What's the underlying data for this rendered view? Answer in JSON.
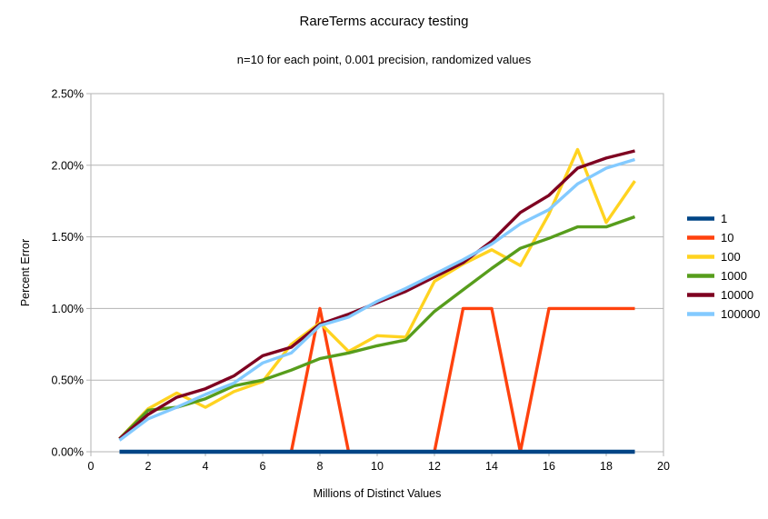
{
  "chart_data": {
    "type": "line",
    "title": "RareTerms accuracy testing",
    "subtitle": "n=10 for each point, 0.001 precision, randomized values",
    "xlabel": "Millions of Distinct Values",
    "ylabel": "Percent Error",
    "xlim": [
      0,
      20
    ],
    "ylim_percent": [
      0.0,
      2.5
    ],
    "grid": "horizontal",
    "legend_position": "right",
    "x_ticks": {
      "values": [
        0,
        2,
        4,
        6,
        8,
        10,
        12,
        14,
        16,
        18,
        20
      ],
      "labels": [
        "0",
        "2",
        "4",
        "6",
        "8",
        "10",
        "12",
        "14",
        "16",
        "18",
        "20"
      ]
    },
    "y_ticks": {
      "values": [
        0.0,
        0.5,
        1.0,
        1.5,
        2.0,
        2.5
      ],
      "labels": [
        "0.00%",
        "0.50%",
        "1.00%",
        "1.50%",
        "2.00%",
        "2.50%"
      ]
    },
    "x": [
      1,
      2,
      3,
      4,
      5,
      6,
      7,
      8,
      9,
      10,
      11,
      12,
      13,
      14,
      15,
      16,
      17,
      18,
      19
    ],
    "series": [
      {
        "name": "1",
        "color": "#004586",
        "values": [
          0,
          0,
          0,
          0,
          0,
          0,
          0,
          0,
          0,
          0,
          0,
          0,
          0,
          0,
          0,
          0,
          0,
          0,
          0
        ]
      },
      {
        "name": "10",
        "color": "#FF420E",
        "values": [
          0,
          0,
          0,
          0,
          0,
          0,
          0,
          1.0,
          0,
          0,
          0,
          0,
          1.0,
          1.0,
          0,
          1.0,
          1.0,
          1.0,
          1.0
        ]
      },
      {
        "name": "100",
        "color": "#FFD320",
        "values": [
          0.09,
          0.3,
          0.41,
          0.31,
          0.42,
          0.49,
          0.75,
          0.9,
          0.7,
          0.81,
          0.8,
          1.19,
          1.31,
          1.41,
          1.3,
          1.66,
          2.11,
          1.6,
          1.89
        ]
      },
      {
        "name": "1000",
        "color": "#579D1C",
        "values": [
          0.09,
          0.29,
          0.31,
          0.37,
          0.46,
          0.5,
          0.57,
          0.65,
          0.69,
          0.74,
          0.78,
          0.98,
          1.13,
          1.28,
          1.42,
          1.49,
          1.57,
          1.57,
          1.64
        ]
      },
      {
        "name": "10000",
        "color": "#7E0021",
        "values": [
          0.09,
          0.26,
          0.38,
          0.44,
          0.53,
          0.67,
          0.73,
          0.89,
          0.96,
          1.04,
          1.12,
          1.22,
          1.32,
          1.47,
          1.67,
          1.79,
          1.98,
          2.05,
          2.1
        ]
      },
      {
        "name": "100000",
        "color": "#83CAFF",
        "values": [
          0.08,
          0.23,
          0.31,
          0.4,
          0.48,
          0.62,
          0.69,
          0.88,
          0.94,
          1.05,
          1.14,
          1.24,
          1.34,
          1.45,
          1.59,
          1.69,
          1.87,
          1.98,
          2.04
        ]
      }
    ],
    "colors": {
      "grid": "#b3b3b3",
      "axis": "#b3b3b3",
      "text": "#000000",
      "background": "#ffffff"
    }
  }
}
